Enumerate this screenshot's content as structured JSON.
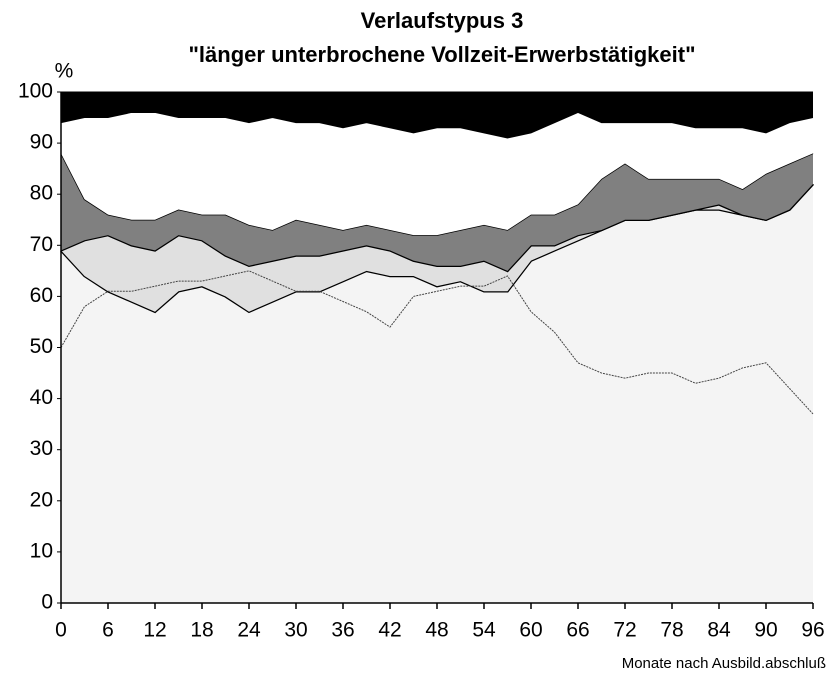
{
  "chart_data": {
    "type": "stacked_area",
    "title": "Verlaufstypus 3",
    "subtitle": "\"länger unterbrochene Vollzeit-Erwerbstätigkeit\"",
    "y_label": "%",
    "x_label": "Monate nach Ausbild.abschluß",
    "x": [
      0,
      3,
      6,
      9,
      12,
      15,
      18,
      21,
      24,
      27,
      30,
      33,
      36,
      39,
      42,
      45,
      48,
      51,
      54,
      57,
      60,
      63,
      66,
      69,
      72,
      75,
      78,
      81,
      84,
      87,
      90,
      93,
      96
    ],
    "series": [
      {
        "color": "#f4f4f4",
        "values": [
          69,
          64,
          61,
          59,
          57,
          61,
          62,
          60,
          57,
          59,
          61,
          61,
          63,
          65,
          64,
          64,
          62,
          63,
          61,
          61,
          67,
          69,
          71,
          73,
          75,
          75,
          76,
          77,
          77,
          76,
          75,
          77,
          82
        ]
      },
      {
        "color": "#e0e0e0",
        "values": [
          0,
          7,
          11,
          11,
          12,
          11,
          9,
          8,
          9,
          8,
          7,
          7,
          6,
          5,
          5,
          3,
          4,
          3,
          6,
          4,
          3,
          1,
          1,
          0,
          0,
          0,
          0,
          0,
          1,
          0,
          0,
          0,
          0
        ]
      },
      {
        "color": "#808080",
        "values": [
          19,
          8,
          4,
          5,
          6,
          5,
          5,
          8,
          8,
          6,
          7,
          6,
          4,
          4,
          4,
          5,
          6,
          7,
          7,
          8,
          6,
          6,
          6,
          10,
          11,
          8,
          7,
          6,
          5,
          5,
          9,
          9,
          6
        ]
      },
      {
        "color": "#ffffff",
        "values": [
          6,
          16,
          19,
          21,
          21,
          18,
          19,
          19,
          20,
          22,
          19,
          20,
          20,
          20,
          20,
          20,
          21,
          20,
          18,
          18,
          16,
          18,
          18,
          11,
          8,
          11,
          11,
          10,
          10,
          12,
          8,
          8,
          7
        ]
      },
      {
        "color": "#000000",
        "values": [
          6,
          5,
          5,
          4,
          4,
          5,
          5,
          5,
          6,
          5,
          6,
          6,
          7,
          6,
          7,
          8,
          7,
          7,
          8,
          9,
          8,
          6,
          4,
          6,
          6,
          6,
          6,
          7,
          7,
          7,
          8,
          6,
          5
        ]
      }
    ],
    "line": {
      "color": "#444444",
      "values": [
        50,
        58,
        61,
        61,
        62,
        63,
        63,
        64,
        65,
        63,
        61,
        61,
        59,
        57,
        54,
        60,
        61,
        62,
        62,
        64,
        57,
        53,
        47,
        45,
        44,
        45,
        45,
        43,
        44,
        46,
        47,
        42,
        37
      ]
    },
    "xlim": [
      0,
      96
    ],
    "xticks": [
      0,
      6,
      12,
      18,
      24,
      30,
      36,
      42,
      48,
      54,
      60,
      66,
      72,
      78,
      84,
      90,
      96
    ],
    "ylim": [
      0,
      100
    ],
    "yticks": [
      0,
      10,
      20,
      30,
      40,
      50,
      60,
      70,
      80,
      90,
      100
    ]
  }
}
